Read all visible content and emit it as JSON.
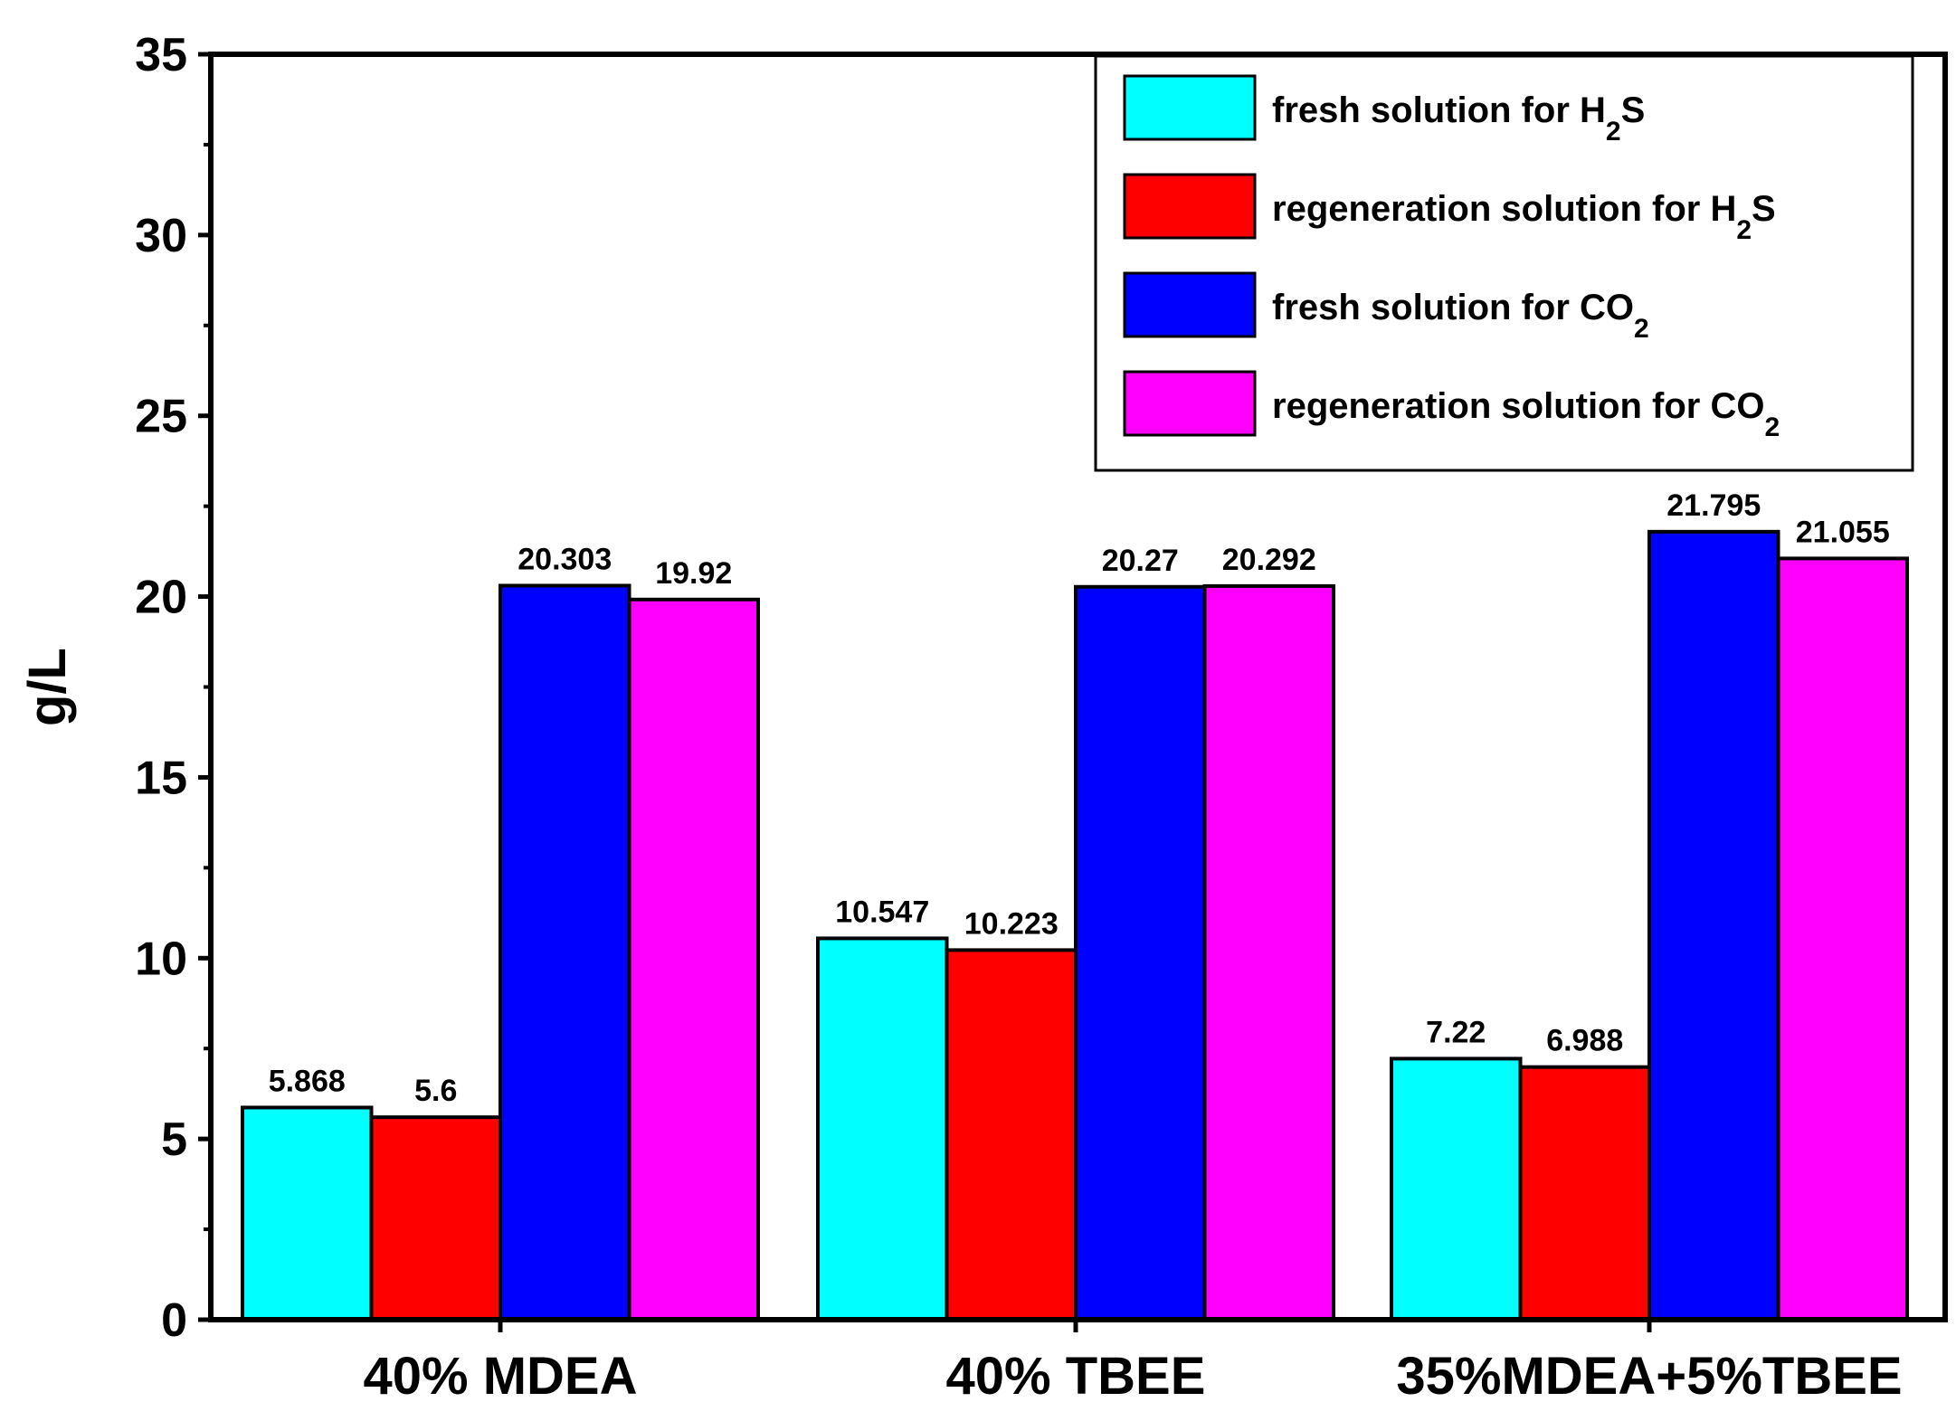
{
  "chart_data": {
    "type": "bar",
    "title": "",
    "xlabel": "",
    "ylabel": "g/L",
    "ylim": [
      0,
      35
    ],
    "yticks": [
      0,
      5,
      10,
      15,
      20,
      25,
      30,
      35
    ],
    "grid": false,
    "legend_position": "top-right",
    "categories": [
      "40% MDEA",
      "40% TBEE",
      "35%MDEA+5%TBEE"
    ],
    "series": [
      {
        "name": "fresh solution for H2S",
        "label_main": "fresh solution for H",
        "label_sub": "2",
        "label_tail": "S",
        "color": "#00ffff",
        "values": [
          5.868,
          10.547,
          7.22
        ],
        "labels": [
          "5.868",
          "10.547",
          "7.22"
        ]
      },
      {
        "name": "regeneration solution for H2S",
        "label_main": "regeneration solution for H",
        "label_sub": "2",
        "label_tail": "S",
        "color": "#ff0000",
        "values": [
          5.6,
          10.223,
          6.988
        ],
        "labels": [
          "5.6",
          "10.223",
          "6.988"
        ]
      },
      {
        "name": "fresh solution for CO2",
        "label_main": "fresh solution for CO",
        "label_sub": "2",
        "label_tail": "",
        "color": "#0000ff",
        "values": [
          20.303,
          20.27,
          21.795
        ],
        "labels": [
          "20.303",
          "20.27",
          "21.795"
        ]
      },
      {
        "name": "regeneration solution for CO2",
        "label_main": "regeneration solution for CO",
        "label_sub": "2",
        "label_tail": "",
        "color": "#ff00ff",
        "values": [
          19.92,
          20.292,
          21.055
        ],
        "labels": [
          "19.92",
          "20.292",
          "21.055"
        ]
      }
    ]
  }
}
